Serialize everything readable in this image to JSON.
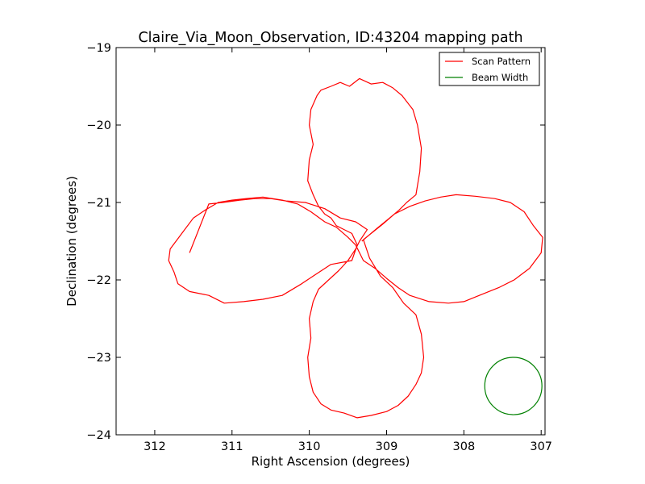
{
  "chart_data": {
    "type": "line",
    "title": "Claire_Via_Moon_Observation, ID:43204 mapping path",
    "xlabel": "Right Ascension (degrees)",
    "ylabel": "Declination (degrees)",
    "xlim": [
      312.5,
      306.95
    ],
    "ylim": [
      -24,
      -19
    ],
    "x_ticks": [
      "312",
      "311",
      "310",
      "309",
      "308",
      "307"
    ],
    "x_tick_values": [
      312,
      311,
      310,
      309,
      308,
      307
    ],
    "y_ticks": [
      "−19",
      "−20",
      "−21",
      "−22",
      "−23",
      "−24"
    ],
    "y_tick_values": [
      -19,
      -20,
      -21,
      -22,
      -23,
      -24
    ],
    "grid": false,
    "legend_position": "top-right",
    "series": [
      {
        "name": "Scan Pattern",
        "color": "#ff0000",
        "points": [
          [
            309.32,
            -21.5
          ],
          [
            309.12,
            -21.33
          ],
          [
            308.96,
            -21.2
          ],
          [
            308.84,
            -21.1
          ],
          [
            308.74,
            -21.0
          ],
          [
            308.62,
            -20.9
          ],
          [
            308.57,
            -20.6
          ],
          [
            308.55,
            -20.3
          ],
          [
            308.6,
            -20.0
          ],
          [
            308.66,
            -19.8
          ],
          [
            308.8,
            -19.62
          ],
          [
            308.92,
            -19.52
          ],
          [
            309.05,
            -19.45
          ],
          [
            309.2,
            -19.47
          ],
          [
            309.35,
            -19.4
          ],
          [
            309.48,
            -19.5
          ],
          [
            309.6,
            -19.45
          ],
          [
            309.72,
            -19.5
          ],
          [
            309.85,
            -19.55
          ],
          [
            309.9,
            -19.62
          ],
          [
            309.98,
            -19.8
          ],
          [
            310.0,
            -20.0
          ],
          [
            309.95,
            -20.25
          ],
          [
            310.0,
            -20.45
          ],
          [
            310.02,
            -20.72
          ],
          [
            309.95,
            -20.9
          ],
          [
            309.88,
            -21.05
          ],
          [
            309.8,
            -21.15
          ],
          [
            309.72,
            -21.2
          ],
          [
            309.65,
            -21.3
          ],
          [
            309.55,
            -21.35
          ],
          [
            309.45,
            -21.4
          ],
          [
            309.38,
            -21.55
          ],
          [
            309.45,
            -21.75
          ],
          [
            309.72,
            -21.8
          ],
          [
            309.95,
            -21.95
          ],
          [
            310.1,
            -22.05
          ],
          [
            310.35,
            -22.2
          ],
          [
            310.6,
            -22.25
          ],
          [
            310.85,
            -22.28
          ],
          [
            311.1,
            -22.3
          ],
          [
            311.3,
            -22.2
          ],
          [
            311.55,
            -22.15
          ],
          [
            311.7,
            -22.05
          ],
          [
            311.75,
            -21.9
          ],
          [
            311.82,
            -21.75
          ],
          [
            311.8,
            -21.6
          ],
          [
            311.65,
            -21.4
          ],
          [
            311.5,
            -21.2
          ],
          [
            311.35,
            -21.1
          ],
          [
            311.18,
            -21.0
          ],
          [
            311.0,
            -20.97
          ],
          [
            310.82,
            -20.95
          ],
          [
            310.6,
            -20.93
          ],
          [
            310.35,
            -20.97
          ],
          [
            310.15,
            -21.02
          ],
          [
            309.98,
            -21.12
          ],
          [
            309.8,
            -21.25
          ],
          [
            309.65,
            -21.32
          ],
          [
            309.5,
            -21.45
          ],
          [
            309.4,
            -21.55
          ],
          [
            309.3,
            -21.75
          ],
          [
            309.15,
            -21.85
          ],
          [
            309.0,
            -21.98
          ],
          [
            308.85,
            -22.1
          ],
          [
            308.7,
            -22.2
          ],
          [
            308.45,
            -22.28
          ],
          [
            308.2,
            -22.3
          ],
          [
            308.0,
            -22.28
          ],
          [
            307.8,
            -22.2
          ],
          [
            307.55,
            -22.1
          ],
          [
            307.35,
            -22.0
          ],
          [
            307.15,
            -21.85
          ],
          [
            307.0,
            -21.65
          ],
          [
            306.98,
            -21.45
          ],
          [
            307.1,
            -21.3
          ],
          [
            307.22,
            -21.12
          ],
          [
            307.4,
            -21.0
          ],
          [
            307.6,
            -20.95
          ],
          [
            307.85,
            -20.92
          ],
          [
            308.1,
            -20.9
          ],
          [
            308.3,
            -20.93
          ],
          [
            308.5,
            -20.98
          ],
          [
            308.7,
            -21.05
          ],
          [
            308.9,
            -21.15
          ],
          [
            309.05,
            -21.28
          ],
          [
            309.2,
            -21.4
          ],
          [
            309.3,
            -21.48
          ],
          [
            309.22,
            -21.72
          ],
          [
            309.08,
            -21.95
          ],
          [
            308.92,
            -22.1
          ],
          [
            308.78,
            -22.3
          ],
          [
            308.62,
            -22.45
          ],
          [
            308.55,
            -22.7
          ],
          [
            308.52,
            -23.0
          ],
          [
            308.55,
            -23.2
          ],
          [
            308.62,
            -23.35
          ],
          [
            308.72,
            -23.5
          ],
          [
            308.85,
            -23.62
          ],
          [
            309.0,
            -23.7
          ],
          [
            309.2,
            -23.75
          ],
          [
            309.38,
            -23.78
          ],
          [
            309.55,
            -23.72
          ],
          [
            309.72,
            -23.68
          ],
          [
            309.85,
            -23.6
          ],
          [
            309.95,
            -23.45
          ],
          [
            310.0,
            -23.25
          ],
          [
            310.02,
            -23.0
          ],
          [
            309.98,
            -22.75
          ],
          [
            310.0,
            -22.5
          ],
          [
            309.95,
            -22.28
          ],
          [
            309.88,
            -22.12
          ],
          [
            309.75,
            -22.0
          ],
          [
            309.62,
            -21.88
          ],
          [
            309.5,
            -21.75
          ],
          [
            309.4,
            -21.6
          ],
          [
            309.35,
            -21.5
          ],
          [
            309.25,
            -21.35
          ],
          [
            309.4,
            -21.25
          ],
          [
            309.6,
            -21.2
          ],
          [
            309.8,
            -21.08
          ],
          [
            310.05,
            -21.0
          ],
          [
            310.3,
            -20.98
          ],
          [
            310.5,
            -20.95
          ],
          [
            310.7,
            -20.95
          ],
          [
            310.9,
            -20.97
          ],
          [
            311.12,
            -21.0
          ],
          [
            311.3,
            -21.02
          ],
          [
            311.55,
            -21.65
          ]
        ]
      },
      {
        "name": "Beam Width",
        "color": "#008000",
        "center": [
          307.36,
          -23.37
        ],
        "radius_deg": 0.37
      }
    ]
  }
}
